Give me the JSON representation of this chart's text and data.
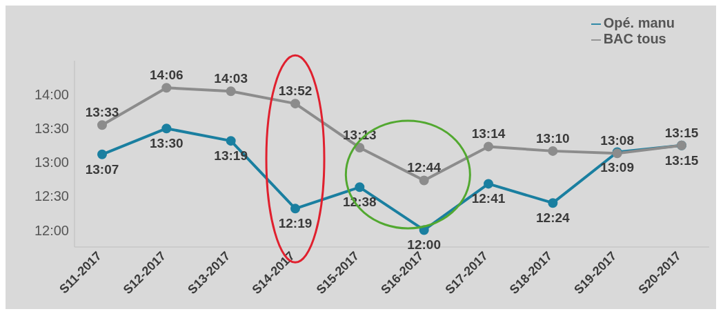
{
  "chart_data": {
    "type": "line",
    "categories": [
      "S11-2017",
      "S12-2017",
      "S13-2017",
      "S14-2017",
      "S15-2017",
      "S16-2017",
      "S17-2017",
      "S18-2017",
      "S19-2017",
      "S20-2017"
    ],
    "series": [
      {
        "name": "Opé. manu",
        "color": "#1a7fa0",
        "values": [
          13.117,
          13.5,
          13.317,
          12.317,
          12.633,
          12,
          12.683,
          12.4,
          13.15,
          13.25
        ],
        "value_labels": [
          "13:07",
          "13:30",
          "13:19",
          "12:19",
          "12:38",
          "12:00",
          "12:41",
          "12:24",
          "13:09",
          "13:15"
        ]
      },
      {
        "name": "BAC tous",
        "color": "#8c8c8c",
        "values": [
          13.55,
          14.1,
          14.05,
          13.867,
          13.217,
          12.733,
          13.233,
          13.167,
          13.133,
          13.25
        ],
        "value_labels": [
          "13:33",
          "14:06",
          "14:03",
          "13:52",
          "13:13",
          "12:44",
          "13:14",
          "13:10",
          "13:08",
          "13:15"
        ]
      }
    ],
    "ylim": [
      11.75,
      14.5
    ],
    "yticks": [
      {
        "value": 12,
        "label": "12:00"
      },
      {
        "value": 12.5,
        "label": "12:30"
      },
      {
        "value": 13,
        "label": "13:00"
      },
      {
        "value": 13.5,
        "label": "13:30"
      },
      {
        "value": 14,
        "label": "14:00"
      }
    ],
    "grid": false,
    "legend": "top right",
    "marker": "circle",
    "line_style": "solid"
  }
}
